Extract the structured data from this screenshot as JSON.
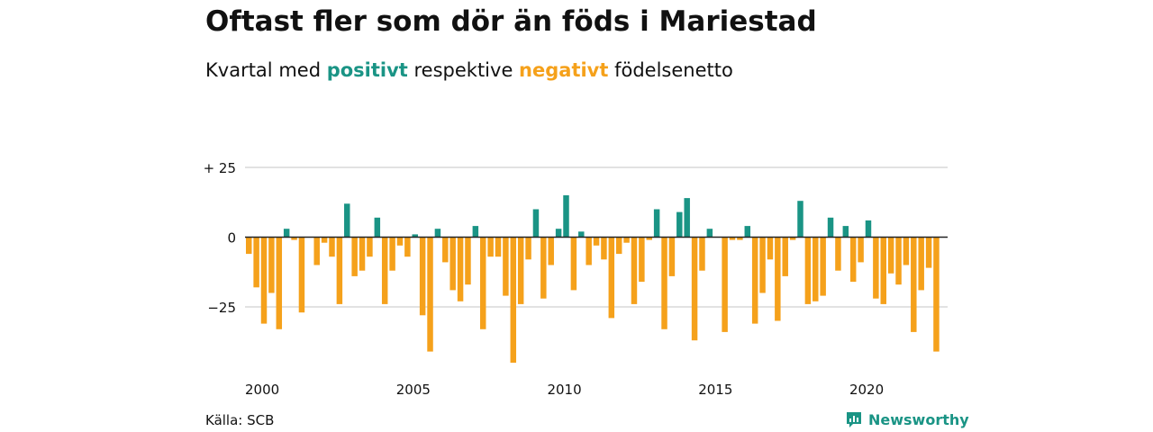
{
  "header": {
    "title": "Oftast fler som dör än föds i Mariestad",
    "subtitle_pre": "Kvartal med ",
    "subtitle_pos": "positivt",
    "subtitle_mid": " respektive ",
    "subtitle_neg": "negativt",
    "subtitle_post": " födelsenetto"
  },
  "colors": {
    "positive": "#1a9485",
    "negative": "#f5a11b",
    "grid": "#d9d9d9",
    "zero": "#222222"
  },
  "footer": {
    "source": "Källa: SCB",
    "brand": "Newsworthy",
    "brand_icon": "newsworthy-logo-icon"
  },
  "chart_data": {
    "type": "bar",
    "title": "Oftast fler som dör än föds i Mariestad",
    "subtitle": "Kvartal med positivt respektive negativt födelsenetto",
    "xlabel": "",
    "ylabel": "",
    "ylim": [
      -45,
      25
    ],
    "xlim": [
      2000,
      2023.25
    ],
    "yticks": [
      {
        "value": 25,
        "label": "+ 25"
      },
      {
        "value": 0,
        "label": "0"
      },
      {
        "value": -25,
        "label": "−25"
      }
    ],
    "xticks": [
      "2000",
      "2005",
      "2010",
      "2015",
      "2020"
    ],
    "grid": true,
    "start_year": 2000,
    "start_quarter": 1,
    "values": [
      -6,
      -18,
      -31,
      -20,
      -33,
      3,
      -1,
      -27,
      0,
      -10,
      -2,
      -7,
      -24,
      12,
      -14,
      -12,
      -7,
      7,
      -24,
      -12,
      -3,
      -7,
      1,
      -28,
      -41,
      3,
      -9,
      -19,
      -23,
      -17,
      4,
      -33,
      -7,
      -7,
      -21,
      -45,
      -24,
      -8,
      10,
      -22,
      -10,
      3,
      15,
      -19,
      2,
      -10,
      -3,
      -8,
      -29,
      -6,
      -2,
      -24,
      -16,
      -1,
      10,
      -33,
      -14,
      9,
      14,
      -37,
      -12,
      3,
      0,
      -34,
      -1,
      -1,
      4,
      -31,
      -20,
      -8,
      -30,
      -14,
      -1,
      13,
      -24,
      -23,
      -21,
      7,
      -12,
      4,
      -16,
      -9,
      6,
      -22,
      -24,
      -13,
      -17,
      -10,
      -34,
      -19,
      -11,
      -41
    ]
  }
}
